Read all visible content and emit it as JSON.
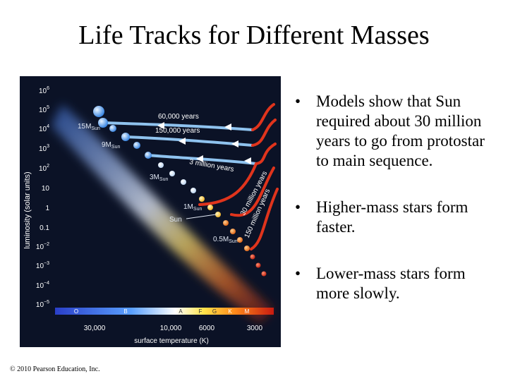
{
  "title": "Life Tracks for Different Masses",
  "bullets": [
    "Models show that Sun required about 30 million years to go from protostar to main sequence.",
    "Higher-mass stars form faster.",
    "Lower-mass stars form more slowly."
  ],
  "copyright": "© 2010 Pearson Education, Inc.",
  "diagram": {
    "y_axis_label": "luminosity (solar units)",
    "x_axis_label": "surface temperature (K)",
    "y_ticks": [
      {
        "base": "10",
        "exp": "6"
      },
      {
        "base": "10",
        "exp": "5"
      },
      {
        "base": "10",
        "exp": "4"
      },
      {
        "base": "10",
        "exp": "3"
      },
      {
        "base": "10",
        "exp": "2"
      },
      {
        "base": "10",
        "exp": ""
      },
      {
        "base": "1",
        "exp": ""
      },
      {
        "base": "0.1",
        "exp": ""
      },
      {
        "base": "10",
        "exp": "−2"
      },
      {
        "base": "10",
        "exp": "−3"
      },
      {
        "base": "10",
        "exp": "−4"
      },
      {
        "base": "10",
        "exp": "−5"
      }
    ],
    "spectral_classes": [
      "O",
      "B",
      "A",
      "F",
      "G",
      "K",
      "M"
    ],
    "x_ticks": [
      "30,000",
      "10,000",
      "6000",
      "3000"
    ],
    "mass_labels": {
      "m15": "15M",
      "m9": "9M",
      "m3": "3M",
      "m1": "1M",
      "m05": "0.5M",
      "sun_sub": "Sun",
      "sun": "Sun"
    },
    "track_labels": {
      "t60k": "60,000 years",
      "t150k": "150,000 years",
      "t3m": "3 million years",
      "t30m": "30 million years",
      "t150m": "150 million years"
    },
    "colors": {
      "background": "#0b1226",
      "track_blue": "#8fc3ef",
      "track_red": "#e0341c",
      "arrow": "#ffffff"
    }
  }
}
